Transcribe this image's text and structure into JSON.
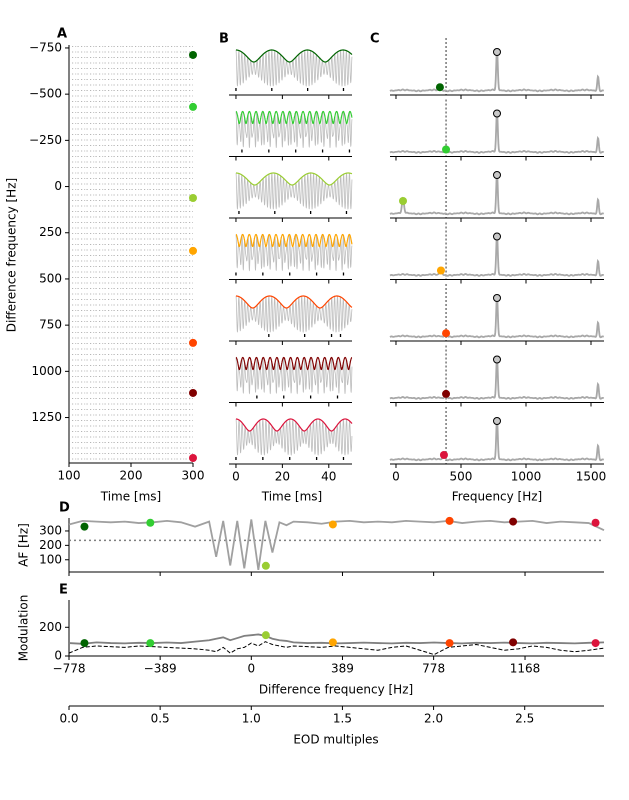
{
  "chart_data": [
    {
      "type": "raster",
      "panel_label": "A",
      "xlabel": "Time [ms]",
      "ylabel": "Difference frequency [Hz]",
      "xlim": [
        100,
        300
      ],
      "xticks": [
        100,
        200,
        300
      ],
      "ylim": [
        -766,
        1496
      ],
      "yticks": [
        {
          "value": -750,
          "label": "−750"
        },
        {
          "value": -500,
          "label": "−500"
        },
        {
          "value": -250,
          "label": "−250"
        },
        0,
        250,
        500,
        750,
        1000,
        1250
      ],
      "marker_x": 300,
      "values": [
        -712,
        -431,
        62,
        348,
        846,
        1117,
        1469
      ],
      "colors": [
        "#006400",
        "#32cd32",
        "#9acd32",
        "#ffa500",
        "#ff4500",
        "#800000",
        "#dc143c"
      ]
    },
    {
      "type": "trace",
      "panel_label": "B",
      "xlabel": "Time [ms]",
      "xlim": [
        -3,
        50
      ],
      "xticks": [
        0,
        20,
        40
      ]
    },
    {
      "type": "spectrum",
      "panel_label": "C",
      "xlabel": "Frequency [Hz]",
      "xlim": [
        -46,
        1600
      ],
      "xticks": [
        0,
        500,
        1000,
        1500
      ],
      "eod_frequency": 777,
      "marker_frequency": 385,
      "dot_frequencies": [
        338,
        385,
        54,
        346,
        385,
        385,
        369
      ],
      "dot_power": [
        0.12,
        0.1,
        0.35,
        0.15,
        0.12,
        0.14,
        0.15
      ]
    },
    {
      "type": "line",
      "panel_label": "D",
      "ylabel": "AF [Hz]",
      "xlim": [
        -778,
        1505
      ],
      "ylim": [
        15,
        390
      ],
      "yticks": [
        100,
        200,
        300
      ],
      "hline": 235,
      "x": [
        -778,
        -720,
        -660,
        -600,
        -540,
        -480,
        -420,
        -360,
        -300,
        -240,
        -180,
        -150,
        -120,
        -90,
        -60,
        -30,
        0,
        30,
        60,
        90,
        120,
        150,
        180,
        240,
        300,
        360,
        420,
        480,
        540,
        600,
        660,
        720,
        780,
        840,
        900,
        960,
        1020,
        1080,
        1140,
        1200,
        1260,
        1320,
        1380,
        1440,
        1505
      ],
      "series": [
        {
          "color": "#a0a0a0",
          "values": [
            345,
            370,
            365,
            360,
            365,
            355,
            360,
            370,
            360,
            330,
            365,
            120,
            370,
            60,
            370,
            40,
            380,
            30,
            370,
            150,
            360,
            340,
            365,
            360,
            350,
            365,
            370,
            360,
            365,
            360,
            370,
            365,
            360,
            370,
            355,
            365,
            370,
            360,
            365,
            370,
            355,
            365,
            360,
            355,
            305
          ]
        }
      ],
      "dot_values": [
        330,
        357,
        58,
        345,
        370,
        365,
        357
      ]
    },
    {
      "type": "line",
      "panel_label": "E",
      "ylabel": "Modulation",
      "xlabel": "Difference frequency [Hz]",
      "xlim": [
        -778,
        1505
      ],
      "xticks": [
        {
          "value": -778,
          "label": "−778"
        },
        {
          "value": -389,
          "label": "−389"
        },
        0,
        389,
        778,
        1168
      ],
      "ylim": [
        0,
        390
      ],
      "yticks": [
        0,
        200
      ],
      "x": [
        -778,
        -720,
        -660,
        -600,
        -540,
        -480,
        -420,
        -360,
        -300,
        -240,
        -180,
        -150,
        -120,
        -90,
        -60,
        -30,
        0,
        30,
        60,
        90,
        120,
        150,
        180,
        240,
        300,
        360,
        420,
        480,
        540,
        600,
        660,
        720,
        780,
        840,
        900,
        960,
        1020,
        1080,
        1140,
        1200,
        1260,
        1320,
        1380,
        1440,
        1505
      ],
      "series": [
        {
          "color": "#808080",
          "style": "solid",
          "values": [
            90,
            85,
            95,
            90,
            88,
            92,
            90,
            94,
            90,
            100,
            110,
            120,
            130,
            110,
            125,
            140,
            145,
            150,
            140,
            120,
            110,
            105,
            95,
            90,
            92,
            88,
            90,
            93,
            90,
            88,
            92,
            90,
            94,
            90,
            88,
            92,
            90,
            93,
            90,
            88,
            92,
            90,
            88,
            92,
            95
          ]
        },
        {
          "color": "#000000",
          "style": "dashed",
          "values": [
            20,
            60,
            70,
            65,
            60,
            70,
            65,
            60,
            55,
            50,
            40,
            30,
            60,
            20,
            50,
            60,
            90,
            70,
            100,
            80,
            70,
            60,
            70,
            65,
            60,
            70,
            60,
            50,
            40,
            60,
            70,
            40,
            10,
            60,
            70,
            80,
            60,
            40,
            50,
            70,
            60,
            40,
            30,
            40,
            55
          ]
        }
      ],
      "dot_values": [
        90,
        90,
        145,
        95,
        90,
        95,
        90
      ],
      "x2label": "EOD multiples",
      "x2lim": [
        0,
        2.935
      ],
      "x2ticks": [
        {
          "value": 0,
          "label": "0.0"
        },
        {
          "value": 0.5,
          "label": "0.5"
        },
        {
          "value": 1,
          "label": "1.0"
        },
        {
          "value": 1.5,
          "label": "1.5"
        },
        {
          "value": 2,
          "label": "2.0"
        },
        {
          "value": 2.5,
          "label": "2.5"
        }
      ]
    }
  ]
}
